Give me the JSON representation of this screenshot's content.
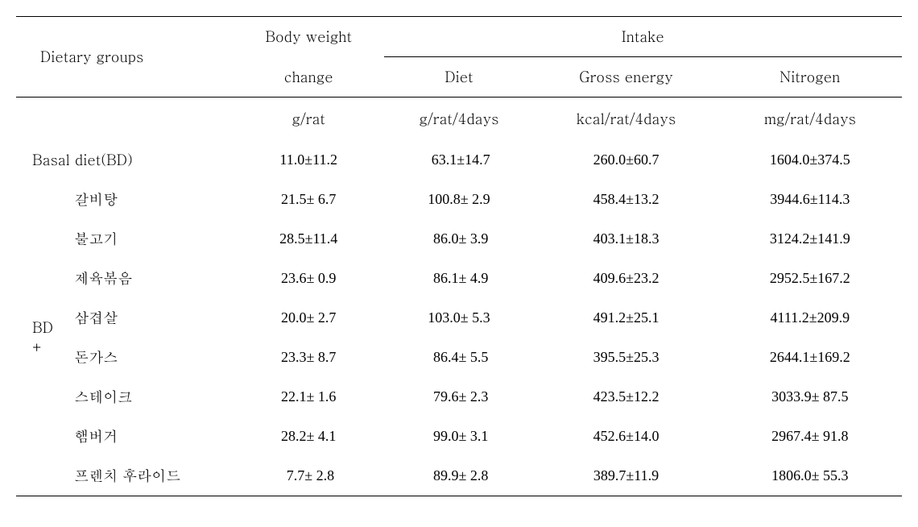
{
  "table": {
    "type": "table",
    "background_color": "#ffffff",
    "text_color": "#000000",
    "border_color": "#000000",
    "font_size": 18,
    "headers": {
      "dietary_groups": "Dietary groups",
      "body_weight": "Body weight",
      "body_weight_sub": "change",
      "intake": "Intake",
      "diet": "Diet",
      "gross_energy": "Gross energy",
      "nitrogen": "Nitrogen"
    },
    "units": {
      "body_weight": "g/rat",
      "diet": "g/rat/4days",
      "gross_energy": "kcal/rat/4days",
      "nitrogen": "mg/rat/4days"
    },
    "basal_row": {
      "label": "Basal  diet(BD)",
      "body_weight": "11.0±11.2",
      "diet": " 63.1±14.7",
      "gross_energy": "260.0±60.7",
      "nitrogen": "1604.0±374.5"
    },
    "bd_plus_label": "BD",
    "bd_plus_symbol": "+",
    "rows": [
      {
        "food": "갈비탕",
        "body_weight": "21.5± 6.7",
        "diet": "100.8± 2.9",
        "gross_energy": "458.4±13.2",
        "nitrogen": "3944.6±114.3"
      },
      {
        "food": "불고기",
        "body_weight": "28.5±11.4",
        "diet": " 86.0± 3.9",
        "gross_energy": "403.1±18.3",
        "nitrogen": "3124.2±141.9"
      },
      {
        "food": "제육볶음",
        "body_weight": "23.6± 0.9",
        "diet": " 86.1± 4.9",
        "gross_energy": "409.6±23.2",
        "nitrogen": "2952.5±167.2"
      },
      {
        "food": "삼겹살",
        "body_weight": "20.0± 2.7",
        "diet": "103.0± 5.3",
        "gross_energy": "491.2±25.1",
        "nitrogen": "4111.2±209.9"
      },
      {
        "food": "돈가스",
        "body_weight": "23.3± 8.7",
        "diet": " 86.4± 5.5",
        "gross_energy": "395.5±25.3",
        "nitrogen": "2644.1±169.2"
      },
      {
        "food": "스테이크",
        "body_weight": "22.1± 1.6",
        "diet": " 79.6± 2.3",
        "gross_energy": "423.5±12.2",
        "nitrogen": "3033.9± 87.5"
      },
      {
        "food": "햄버거",
        "body_weight": "28.2± 4.1",
        "diet": " 99.0± 3.1",
        "gross_energy": "452.6±14.0",
        "nitrogen": "2967.4± 91.8"
      },
      {
        "food": "프렌치 후라이드",
        "body_weight": " 7.7± 2.8",
        "diet": " 89.9± 2.8",
        "gross_energy": "389.7±11.9",
        "nitrogen": "1806.0± 55.3"
      }
    ]
  }
}
